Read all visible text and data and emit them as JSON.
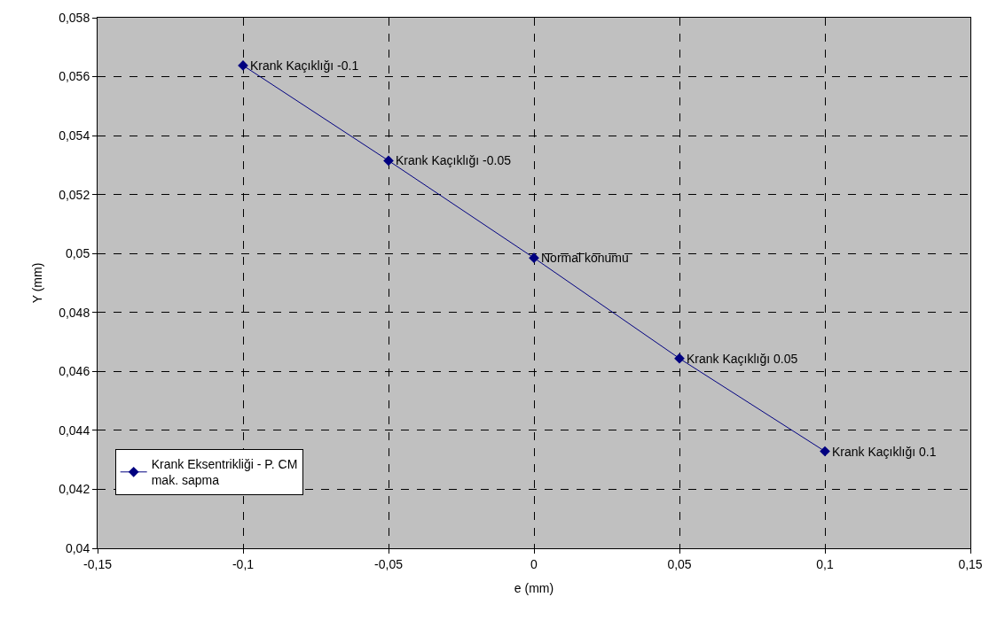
{
  "chart_data": {
    "type": "line",
    "xlabel": "e (mm)",
    "ylabel": "Y (mm)",
    "x": [
      -0.1,
      -0.05,
      0,
      0.05,
      0.1
    ],
    "series": [
      {
        "name": "Krank Eksentrikliği - P. CM mak. sapma",
        "color": "#000080",
        "values": [
          0.05638,
          0.05315,
          0.04985,
          0.04644,
          0.04329
        ]
      }
    ],
    "annotations": [
      {
        "text": "Krank Kaçıklığı -0.1",
        "x": -0.1,
        "y": 0.05638
      },
      {
        "text": "Krank Kaçıklığı -0.05",
        "x": -0.05,
        "y": 0.05315
      },
      {
        "text": "Normal konumu",
        "x": 0,
        "y": 0.04985
      },
      {
        "text": "Krank Kaçıklığı 0.05",
        "x": 0.05,
        "y": 0.04644
      },
      {
        "text": "Krank Kaçıklığı 0.1",
        "x": 0.1,
        "y": 0.04329
      }
    ],
    "xlim": [
      -0.15,
      0.15
    ],
    "xticks": [
      {
        "value": -0.15,
        "label": "-0,15"
      },
      {
        "value": -0.1,
        "label": "-0,1"
      },
      {
        "value": -0.05,
        "label": "-0,05"
      },
      0,
      {
        "value": 0.05,
        "label": "0,05"
      },
      {
        "value": 0.1,
        "label": "0,1"
      },
      {
        "value": 0.15,
        "label": "0,15"
      }
    ],
    "ylim": [
      0.04,
      0.058
    ],
    "yticks": [
      {
        "value": 0.04,
        "label": "0,04"
      },
      {
        "value": 0.042,
        "label": "0,042"
      },
      {
        "value": 0.044,
        "label": "0,044"
      },
      {
        "value": 0.046,
        "label": "0,046"
      },
      {
        "value": 0.048,
        "label": "0,048"
      },
      {
        "value": 0.05,
        "label": "0,05"
      },
      {
        "value": 0.052,
        "label": "0,052"
      },
      {
        "value": 0.054,
        "label": "0,054"
      },
      {
        "value": 0.056,
        "label": "0,056"
      },
      {
        "value": 0.058,
        "label": "0,058"
      }
    ],
    "grid": true,
    "legend": "bottom left",
    "marker": "diamond",
    "line_style": "solid"
  }
}
